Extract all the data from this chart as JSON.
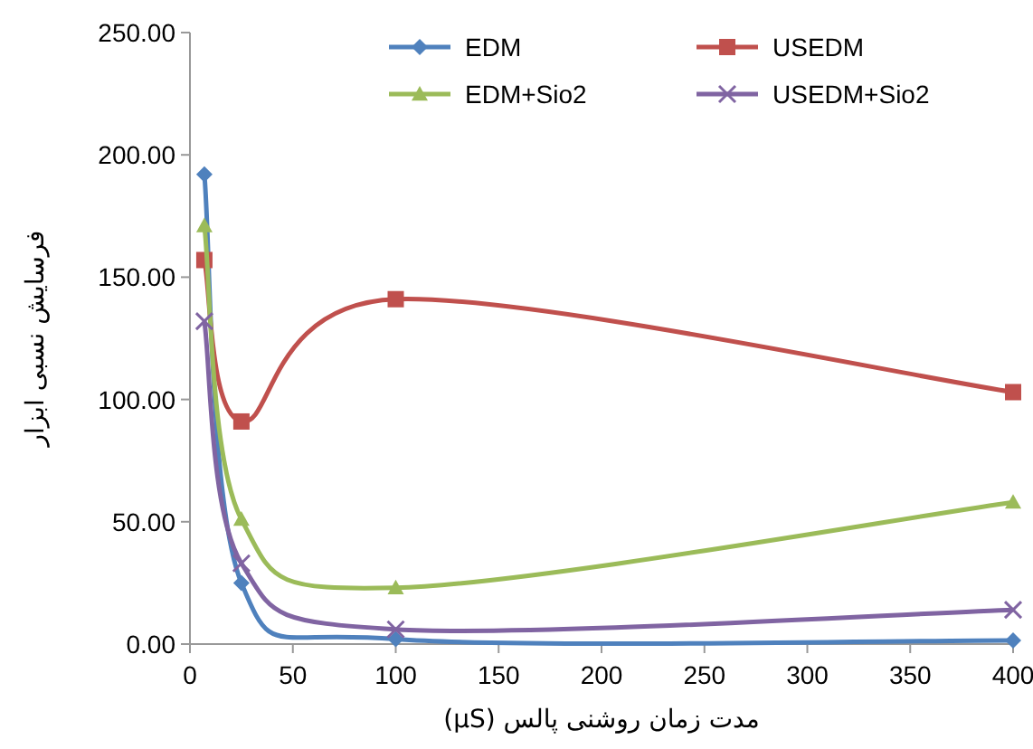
{
  "chart_data": {
    "type": "line",
    "xlabel": "مدت زمان روشنی پالس (µS)",
    "ylabel": "فرسایش نسبی ابزار",
    "x": [
      7,
      25,
      100,
      400
    ],
    "series": [
      {
        "name": "EDM",
        "color": "#4f81bd",
        "marker": "diamond",
        "values": [
          192,
          25,
          2,
          1.5
        ]
      },
      {
        "name": "USEDM",
        "color": "#c0504d",
        "marker": "square",
        "values": [
          157,
          91,
          141,
          103
        ]
      },
      {
        "name": "EDM+Sio2",
        "color": "#9bbb59",
        "marker": "triangle",
        "values": [
          171,
          51,
          23,
          58
        ]
      },
      {
        "name": "USEDM+Sio2",
        "color": "#8064a2",
        "marker": "cross",
        "values": [
          132,
          33,
          6,
          14
        ]
      }
    ],
    "xlim": [
      0,
      400
    ],
    "xticks": [
      0,
      50,
      100,
      150,
      200,
      250,
      300,
      350,
      400
    ],
    "ylim": [
      0,
      250
    ],
    "yticks": [
      {
        "value": 0,
        "label": "0.00"
      },
      {
        "value": 50,
        "label": "50.00"
      },
      {
        "value": 100,
        "label": "100.00"
      },
      {
        "value": 150,
        "label": "150.00"
      },
      {
        "value": 200,
        "label": "200.00"
      },
      {
        "value": 250,
        "label": "250.00"
      }
    ],
    "grid": false,
    "legend": "top right",
    "line_style": "solid"
  }
}
